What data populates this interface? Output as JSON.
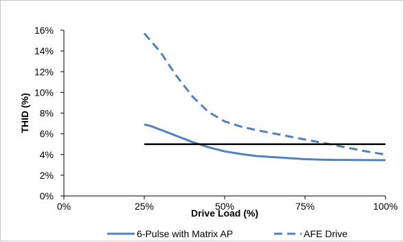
{
  "chart_data": {
    "type": "line",
    "xlabel": "Drive Load (%)",
    "ylabel": "THID (%)",
    "xlim": [
      0,
      100
    ],
    "ylim": [
      0,
      16
    ],
    "x_ticks": [
      0,
      25,
      50,
      75,
      100
    ],
    "x_tick_labels": [
      "0%",
      "25%",
      "50%",
      "75%",
      "100%"
    ],
    "y_ticks": [
      0,
      2,
      4,
      6,
      8,
      10,
      12,
      14,
      16
    ],
    "y_tick_labels": [
      "0%",
      "2%",
      "4%",
      "6%",
      "8%",
      "10%",
      "12%",
      "14%",
      "16%"
    ],
    "grid": false,
    "legend_position": "bottom",
    "series": [
      {
        "name": "6-Pulse with Matrix AP",
        "color": "#4f81bd",
        "style": "solid",
        "x": [
          25,
          27,
          30,
          35,
          40,
          45,
          50,
          55,
          60,
          65,
          70,
          75,
          80,
          85,
          90,
          95,
          100
        ],
        "y": [
          6.9,
          6.75,
          6.4,
          5.8,
          5.2,
          4.7,
          4.3,
          4.05,
          3.85,
          3.75,
          3.65,
          3.55,
          3.5,
          3.48,
          3.47,
          3.46,
          3.45
        ]
      },
      {
        "name": "AFE Drive",
        "color": "#4f81bd",
        "style": "dashed",
        "x": [
          25,
          30,
          35,
          40,
          45,
          50,
          55,
          60,
          65,
          70,
          75,
          80,
          85,
          90,
          95,
          100
        ],
        "y": [
          15.7,
          13.9,
          11.6,
          9.6,
          8.1,
          7.2,
          6.7,
          6.35,
          6.05,
          5.75,
          5.45,
          5.15,
          4.85,
          4.55,
          4.25,
          4.0
        ]
      },
      {
        "color": "#000000",
        "style": "solid",
        "x": [
          25,
          100
        ],
        "y": [
          5,
          5
        ]
      }
    ]
  }
}
